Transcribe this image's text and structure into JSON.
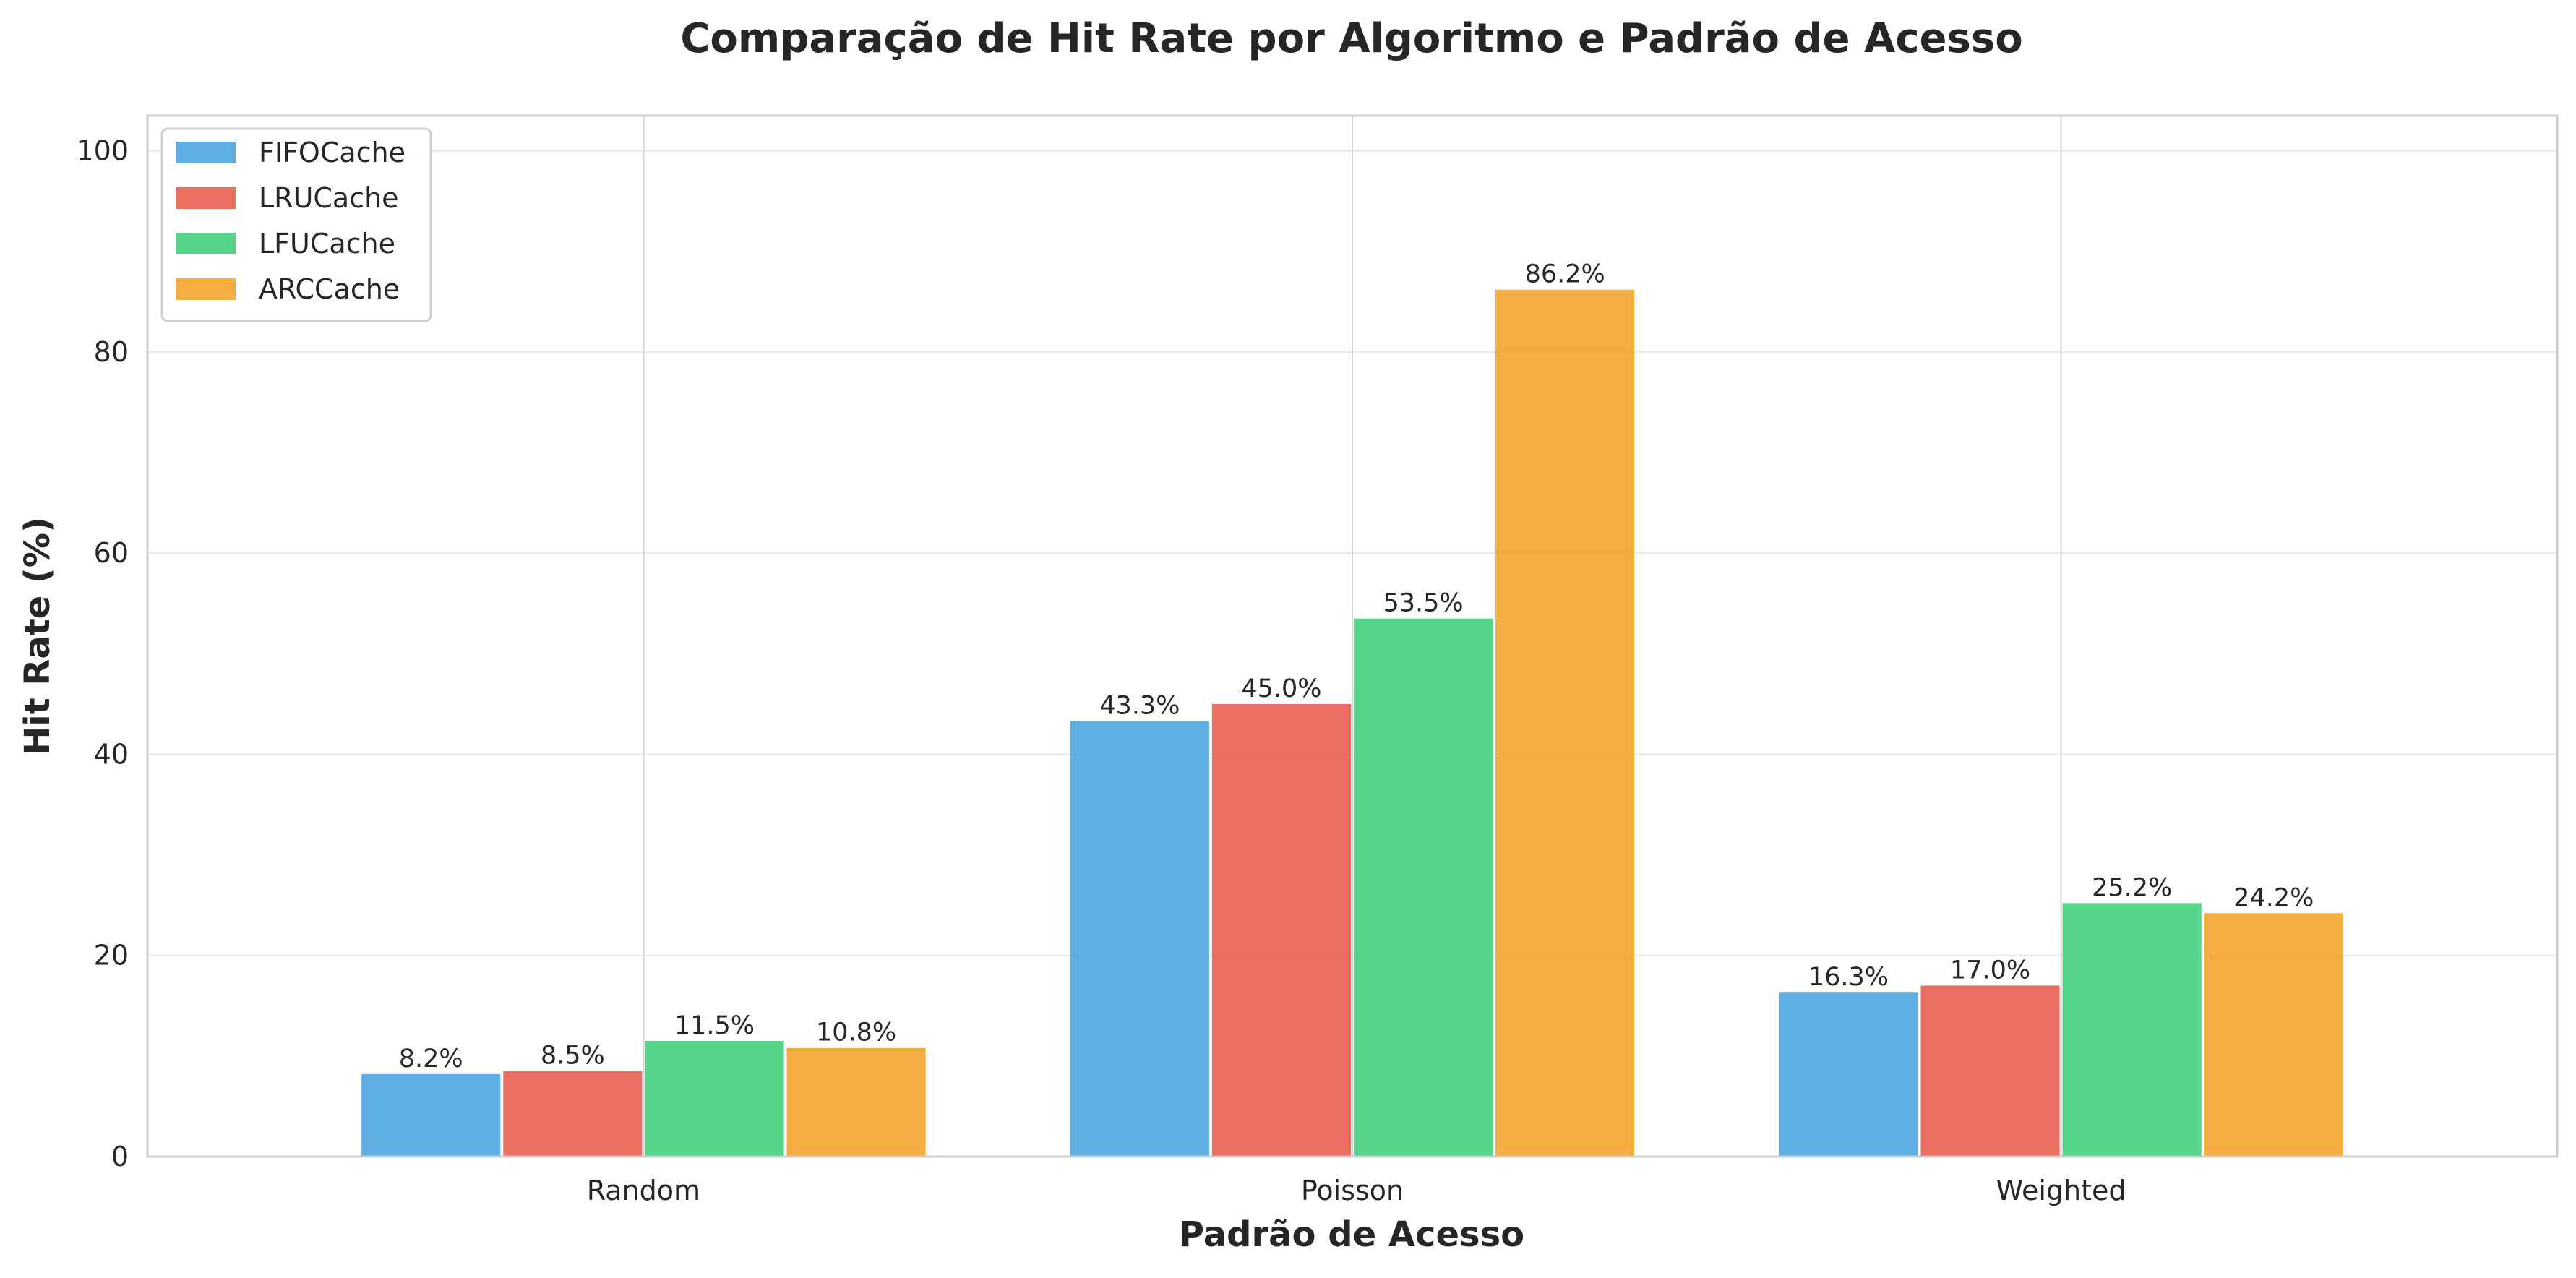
{
  "chart_data": {
    "type": "bar",
    "title": "Comparação de Hit Rate por Algoritmo e Padrão de Acesso",
    "xlabel": "Padrão de Acesso",
    "ylabel": "Hit Rate (%)",
    "categories": [
      "Random",
      "Poisson",
      "Weighted"
    ],
    "ylim": [
      0,
      103.5
    ],
    "yticks": [
      0,
      20,
      40,
      60,
      80,
      100
    ],
    "grid": true,
    "legend_position": "top-left",
    "series": [
      {
        "name": "FIFOCache",
        "color": "#4ea6e0",
        "values": [
          8.2,
          43.3,
          16.3
        ],
        "labels": [
          "8.2%",
          "43.3%",
          "16.3%"
        ]
      },
      {
        "name": "LRUCache",
        "color": "#e85f4f",
        "values": [
          8.5,
          45.0,
          17.0
        ],
        "labels": [
          "8.5%",
          "45.0%",
          "17.0%"
        ]
      },
      {
        "name": "LFUCache",
        "color": "#45d07e",
        "values": [
          11.5,
          53.5,
          25.2
        ],
        "labels": [
          "11.5%",
          "53.5%",
          "25.2%"
        ]
      },
      {
        "name": "ARCCache",
        "color": "#f3a42c",
        "values": [
          10.8,
          86.2,
          24.2
        ],
        "labels": [
          "10.8%",
          "86.2%",
          "24.2%"
        ]
      }
    ]
  }
}
